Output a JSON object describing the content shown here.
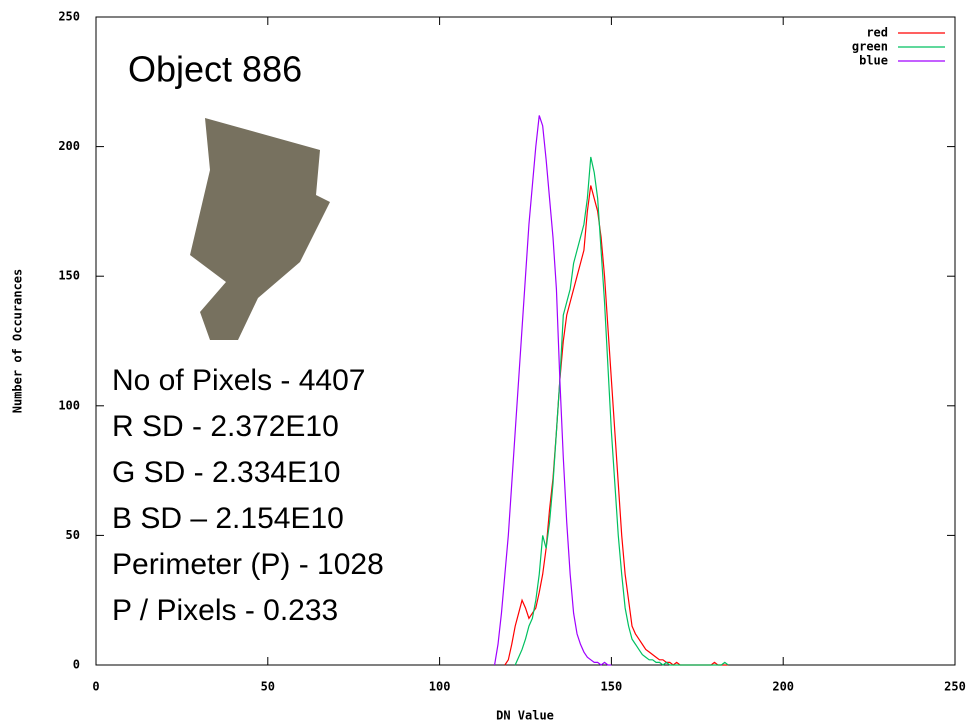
{
  "chart_data": {
    "type": "line",
    "xlabel": "DN Value",
    "ylabel": "Number of Occurances",
    "annotations": [
      "Object 886",
      "No of Pixels - 4407",
      "R SD - 2.372E10",
      "G SD - 2.334E10",
      "B SD – 2.154E10",
      "Perimeter (P) - 1028",
      "P / Pixels - 0.233"
    ],
    "legend": "upper right",
    "xlim": [
      0,
      250
    ],
    "xticks": [
      0,
      50,
      100,
      150,
      200,
      250
    ],
    "ylim": [
      0,
      250
    ],
    "yticks": [
      0,
      50,
      100,
      150,
      200,
      250
    ],
    "x": [
      116,
      117,
      118,
      119,
      120,
      121,
      122,
      123,
      124,
      125,
      126,
      127,
      128,
      129,
      130,
      131,
      132,
      133,
      134,
      135,
      136,
      137,
      138,
      139,
      140,
      141,
      142,
      143,
      144,
      145,
      146,
      147,
      148,
      149,
      150,
      151,
      152,
      153,
      154,
      155,
      156,
      157,
      158,
      159,
      160,
      161,
      162,
      163,
      164,
      165,
      166,
      167,
      168,
      169,
      170,
      171,
      172,
      173,
      174,
      175,
      176,
      177,
      178,
      179,
      180,
      181,
      182,
      183,
      184
    ],
    "series": [
      {
        "name": "red",
        "color": "#ff0000",
        "values": [
          null,
          null,
          null,
          0,
          2,
          8,
          15,
          20,
          25,
          22,
          18,
          20,
          22,
          28,
          35,
          45,
          60,
          72,
          90,
          110,
          125,
          135,
          140,
          145,
          150,
          155,
          160,
          175,
          185,
          180,
          175,
          165,
          150,
          130,
          110,
          90,
          70,
          50,
          35,
          25,
          15,
          12,
          10,
          8,
          6,
          5,
          4,
          3,
          2,
          2,
          1,
          1,
          0,
          1,
          0,
          0,
          0,
          0,
          0,
          0,
          0,
          0,
          0,
          0,
          1,
          0,
          0,
          0,
          0
        ]
      },
      {
        "name": "green",
        "color": "#00c060",
        "values": [
          null,
          null,
          null,
          null,
          null,
          null,
          0,
          3,
          6,
          10,
          15,
          18,
          25,
          35,
          50,
          45,
          55,
          70,
          90,
          110,
          135,
          140,
          145,
          155,
          160,
          165,
          170,
          180,
          196,
          190,
          180,
          160,
          140,
          115,
          90,
          70,
          50,
          35,
          22,
          15,
          10,
          8,
          6,
          4,
          3,
          2,
          2,
          1,
          1,
          0,
          1,
          0,
          0,
          0,
          0,
          0,
          0,
          0,
          0,
          0,
          0,
          0,
          0,
          0,
          0,
          0,
          0,
          1,
          0
        ]
      },
      {
        "name": "blue",
        "color": "#a000ff",
        "values": [
          0,
          8,
          20,
          35,
          50,
          70,
          90,
          110,
          130,
          150,
          170,
          185,
          200,
          212,
          208,
          195,
          180,
          165,
          145,
          110,
          80,
          55,
          35,
          20,
          12,
          8,
          5,
          3,
          2,
          1,
          1,
          0,
          1,
          0,
          0,
          null,
          null,
          null,
          null,
          null,
          null,
          null,
          null,
          null,
          null,
          null,
          null,
          null,
          null,
          null,
          null,
          null,
          null,
          null,
          null,
          null,
          null,
          null,
          null,
          null,
          null,
          null,
          null,
          null,
          null,
          null,
          null,
          null,
          null
        ]
      }
    ]
  }
}
